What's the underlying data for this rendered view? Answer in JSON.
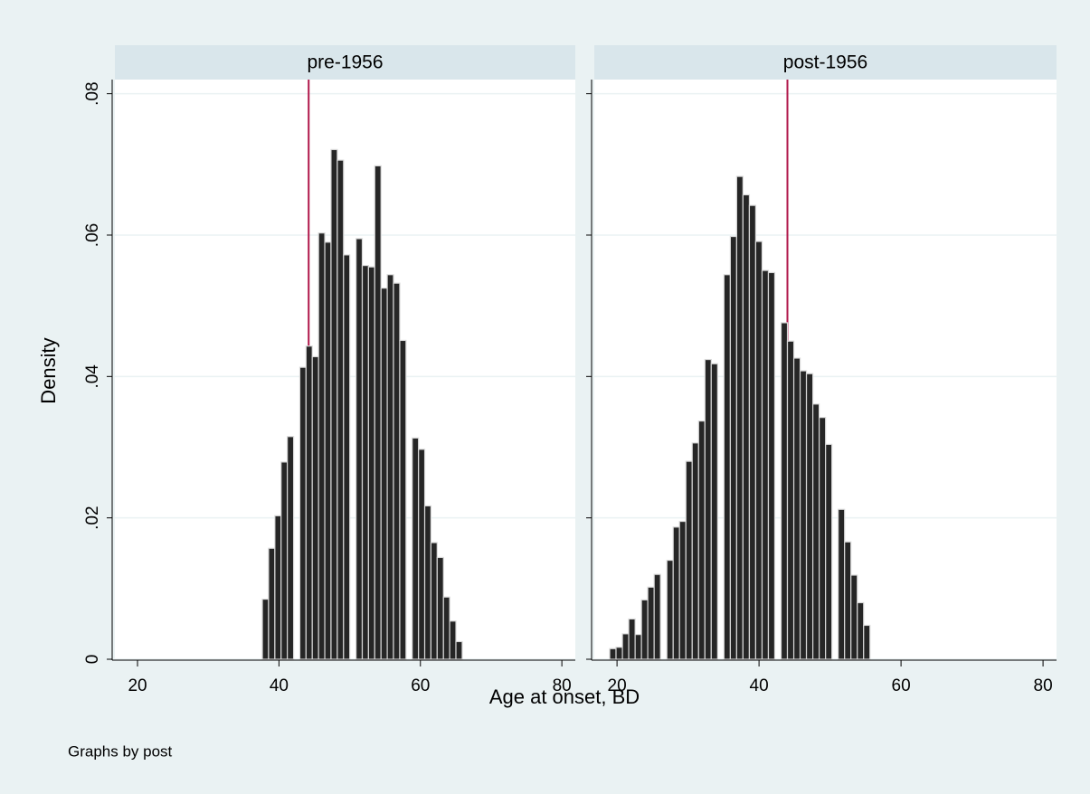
{
  "figure": {
    "x_label": "Age at onset, BD",
    "y_label": "Density",
    "note": "Graphs by post"
  },
  "chart_data": [
    {
      "type": "histogram",
      "title": "pre-1956",
      "color": "#262626",
      "line_color": "#b0174a",
      "xline": 44.2,
      "bins": [
        37.65,
        38.53,
        39.42,
        40.3,
        41.18,
        42.07,
        42.95,
        43.83,
        44.71,
        45.6,
        46.48,
        47.36,
        48.25,
        49.13,
        50.01,
        50.9,
        51.78,
        52.66,
        53.54,
        54.43,
        55.31,
        56.19,
        57.08,
        57.96,
        58.84,
        59.73,
        60.61,
        61.49,
        62.37,
        63.26,
        64.14,
        65.02,
        65.91
      ],
      "values": [
        0.0085,
        0.0157,
        0.0203,
        0.0279,
        0.0315,
        0,
        0.0413,
        0.0443,
        0.0428,
        0.0603,
        0.059,
        0.0721,
        0.0706,
        0.0572,
        0,
        0.0595,
        0.0557,
        0.0555,
        0.0698,
        0.0525,
        0.0544,
        0.0532,
        0.0451,
        0,
        0.0313,
        0.0297,
        0.0217,
        0.0165,
        0.0144,
        0.0088,
        0.0054,
        0.0025
      ],
      "xlim": [
        16.8,
        81.9
      ],
      "ylim": [
        0,
        0.082
      ],
      "xticks": [
        20,
        40,
        60,
        80
      ],
      "yticks": [
        {
          "value": 0,
          "label": "0"
        },
        {
          "value": 0.02,
          "label": ".02"
        },
        {
          "value": 0.04,
          "label": ".04"
        },
        {
          "value": 0.06,
          "label": ".06"
        },
        {
          "value": 0.08,
          "label": ".08"
        }
      ],
      "grid": true
    },
    {
      "type": "histogram",
      "title": "post-1956",
      "color": "#262626",
      "line_color": "#b0174a",
      "xline": 44.0,
      "bins": [
        18.97,
        19.86,
        20.76,
        21.65,
        22.55,
        23.44,
        24.33,
        25.23,
        26.12,
        27.02,
        27.91,
        28.8,
        29.7,
        30.59,
        31.49,
        32.38,
        33.27,
        34.17,
        35.06,
        35.96,
        36.85,
        37.74,
        38.64,
        39.53,
        40.43,
        41.32,
        42.21,
        43.11,
        44.0,
        44.9,
        45.79,
        46.68,
        47.58,
        48.47,
        49.37,
        50.26,
        51.15,
        52.05,
        52.94,
        53.84,
        54.73,
        55.62
      ],
      "values": [
        0.0015,
        0.0017,
        0.0036,
        0.0057,
        0.0035,
        0.0084,
        0.0102,
        0.012,
        0,
        0.014,
        0.0187,
        0.0195,
        0.028,
        0.0306,
        0.0337,
        0.0424,
        0.0418,
        0,
        0.0544,
        0.0598,
        0.0683,
        0.0657,
        0.0642,
        0.0591,
        0.055,
        0.0547,
        0,
        0.0476,
        0.045,
        0.0426,
        0.0408,
        0.0404,
        0.0361,
        0.0342,
        0.0304,
        0,
        0.0212,
        0.0166,
        0.0119,
        0.008,
        0.0048
      ],
      "xlim": [
        16.8,
        81.9
      ],
      "ylim": [
        0,
        0.082
      ],
      "xticks": [
        20,
        40,
        60,
        80
      ],
      "yticks": [
        {
          "value": 0,
          "label": "0"
        },
        {
          "value": 0.02,
          "label": ".02"
        },
        {
          "value": 0.04,
          "label": ".04"
        },
        {
          "value": 0.06,
          "label": ".06"
        },
        {
          "value": 0.08,
          "label": ".08"
        }
      ],
      "grid": true
    }
  ]
}
